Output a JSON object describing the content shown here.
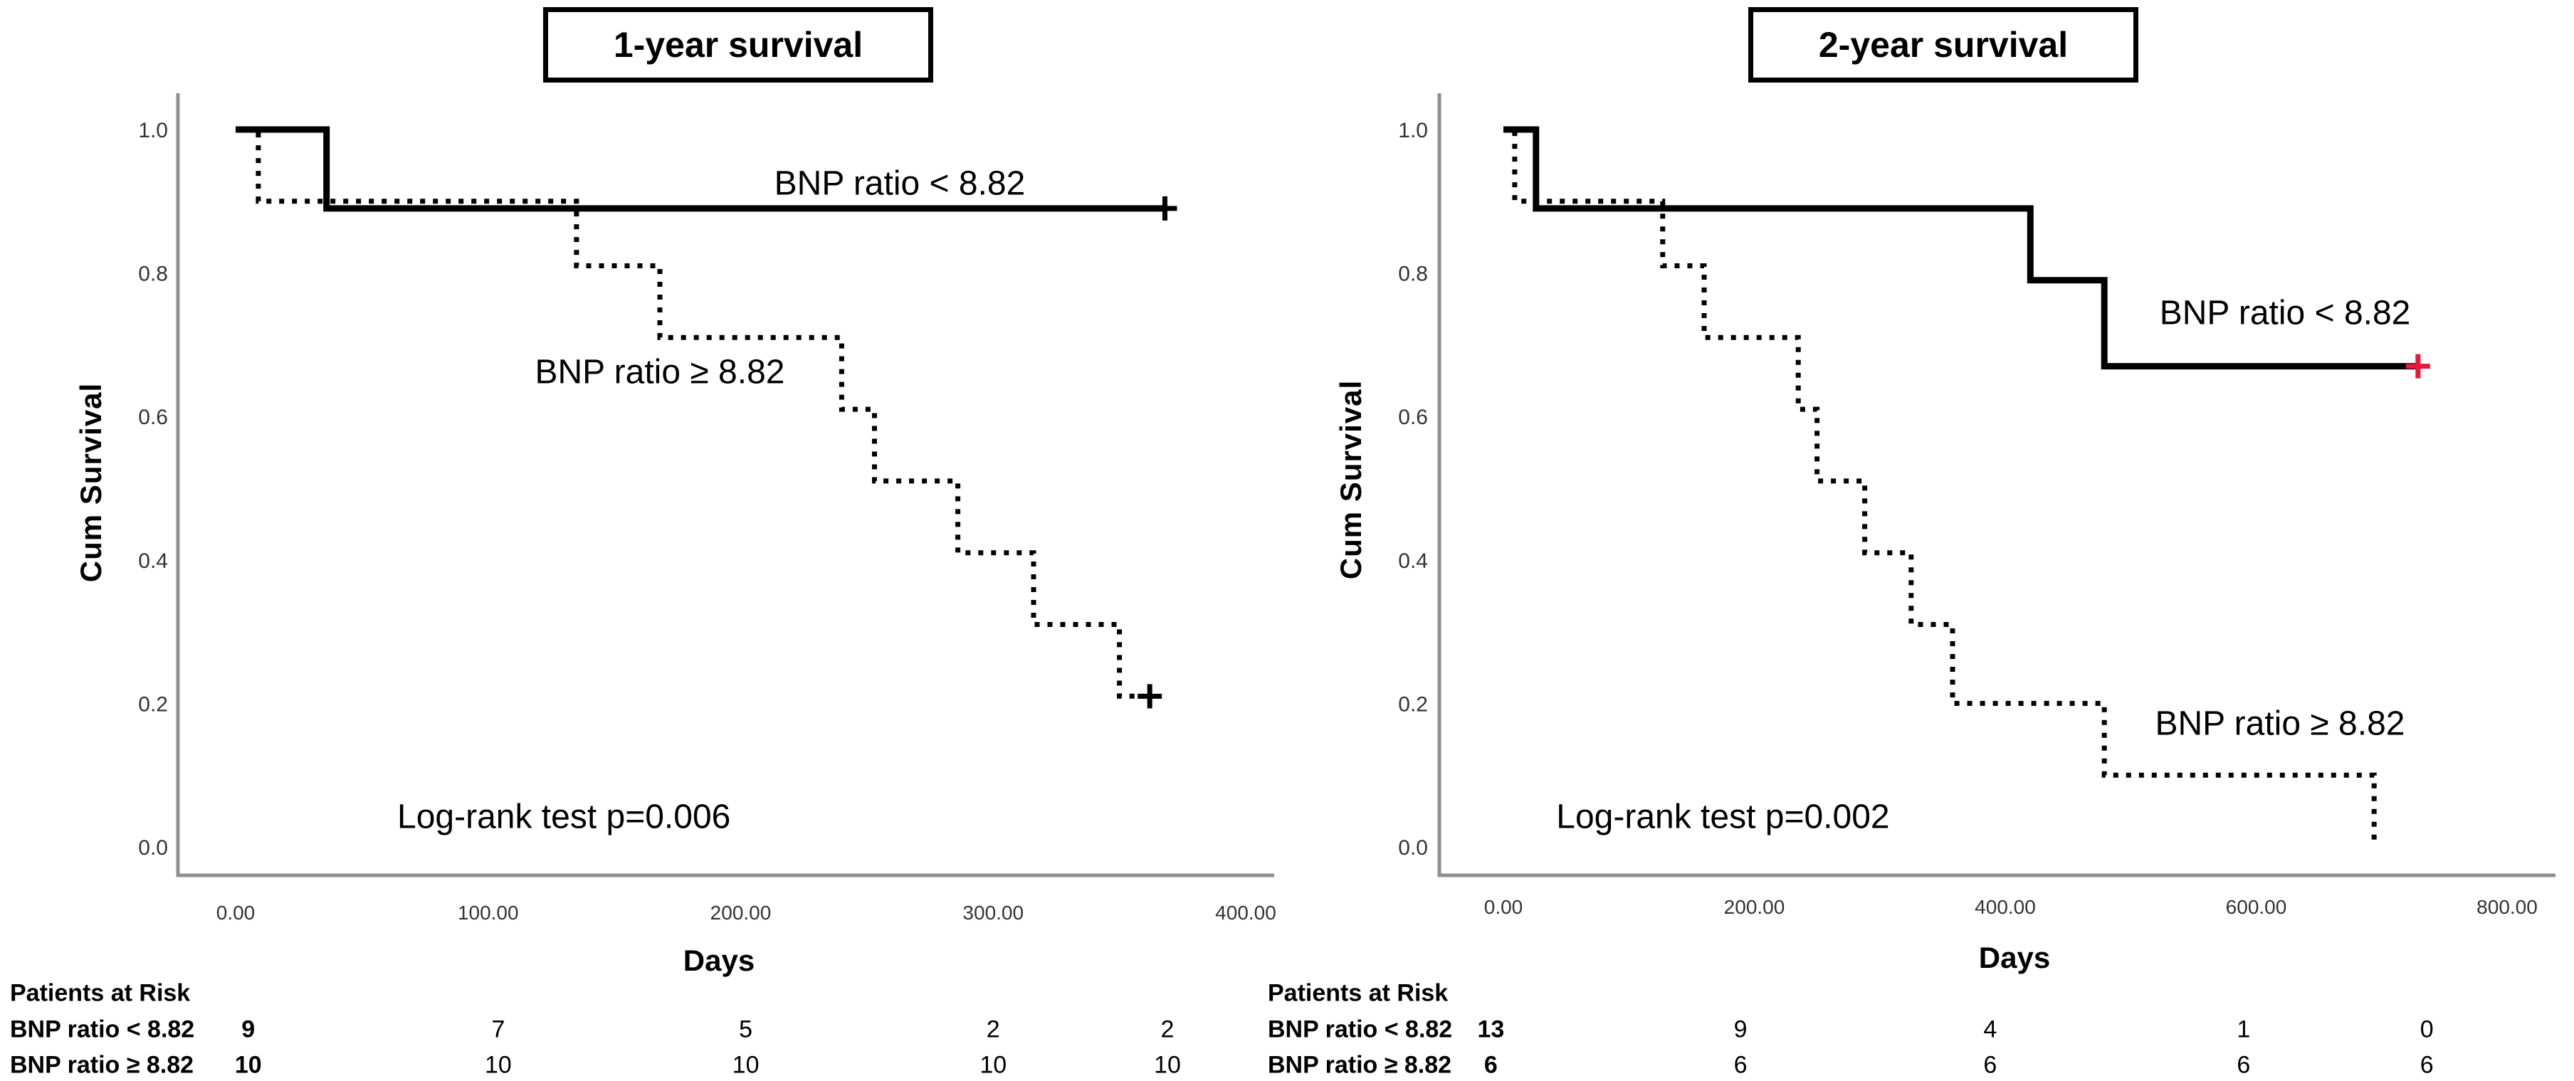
{
  "figure_background": "#ffffff",
  "censor_symbol": "+",
  "accent_red": "#e8173c",
  "chart_data": [
    {
      "type": "line",
      "subtype": "kaplan-meier-step",
      "title": "1-year survival",
      "xlabel": "Days",
      "ylabel": "Cum Survival",
      "xlim": [
        0,
        400
      ],
      "ylim": [
        0.0,
        1.0
      ],
      "grid": false,
      "legend_position": "inline-labels",
      "xticks": [
        {
          "label": "0.00",
          "day": 0
        },
        {
          "label": "100.00",
          "day": 100
        },
        {
          "label": "200.00",
          "day": 200
        },
        {
          "label": "300.00",
          "day": 300
        },
        {
          "label": "400.00",
          "day": 400
        }
      ],
      "yticks": [
        {
          "label": "1.0",
          "value": 1.0
        },
        {
          "label": "0.8",
          "value": 0.8
        },
        {
          "label": "0.6",
          "value": 0.6
        },
        {
          "label": "0.4",
          "value": 0.4
        },
        {
          "label": "0.2",
          "value": 0.2
        },
        {
          "label": "0.0",
          "value": 0.0
        }
      ],
      "logrank": {
        "text": "Log-rank test p=0.006",
        "anchor": {
          "day": 130,
          "value": 0.042
        }
      },
      "series": [
        {
          "name": "BNP ratio < 8.82",
          "style": "solid",
          "color": "#000000",
          "steps": [
            [
              0,
              1.0
            ],
            [
              36,
              1.0
            ],
            [
              36,
              0.89
            ],
            [
              368,
              0.89
            ]
          ],
          "censors": [
            {
              "day": 368,
              "value": 0.89,
              "color": "#000000"
            }
          ],
          "label": {
            "text": "BNP ratio < 8.82",
            "anchor": {
              "day": 263,
              "value": 0.925
            }
          }
        },
        {
          "name": "BNP ratio ≥ 8.82",
          "style": "dotted",
          "color": "#000000",
          "steps": [
            [
              0,
              1.0
            ],
            [
              9,
              1.0
            ],
            [
              9,
              0.9
            ],
            [
              135,
              0.9
            ],
            [
              135,
              0.81
            ],
            [
              168,
              0.81
            ],
            [
              168,
              0.71
            ],
            [
              240,
              0.71
            ],
            [
              240,
              0.61
            ],
            [
              253,
              0.61
            ],
            [
              253,
              0.51
            ],
            [
              286,
              0.51
            ],
            [
              286,
              0.41
            ],
            [
              316,
              0.41
            ],
            [
              316,
              0.31
            ],
            [
              350,
              0.31
            ],
            [
              350,
              0.21
            ],
            [
              360,
              0.21
            ]
          ],
          "censors": [
            {
              "day": 362,
              "value": 0.21,
              "color": "#000000"
            }
          ],
          "label": {
            "text": "BNP ratio ≥ 8.82",
            "anchor": {
              "day": 168,
              "value": 0.662
            }
          }
        }
      ],
      "at_risk": {
        "header": "Patients at Risk",
        "column_days": [
          5,
          104,
          202,
          300,
          369
        ],
        "rows": [
          {
            "label": "BNP ratio < 8.82",
            "counts": [
              "9",
              "7",
              "5",
              "2",
              "2"
            ]
          },
          {
            "label": "BNP ratio ≥ 8.82",
            "counts": [
              "10",
              "10",
              "10",
              "10",
              "10"
            ]
          }
        ]
      }
    },
    {
      "type": "line",
      "subtype": "kaplan-meier-step",
      "title": "2-year survival",
      "xlabel": "Days",
      "ylabel": "Cum Survival",
      "xlim": [
        0,
        800
      ],
      "ylim": [
        0.0,
        1.0
      ],
      "grid": false,
      "legend_position": "inline-labels",
      "xticks": [
        {
          "label": "0.00",
          "day": 0
        },
        {
          "label": "200.00",
          "day": 200
        },
        {
          "label": "400.00",
          "day": 400
        },
        {
          "label": "600.00",
          "day": 600
        },
        {
          "label": "800.00",
          "day": 800
        }
      ],
      "yticks": [
        {
          "label": "1.0",
          "value": 1.0
        },
        {
          "label": "0.8",
          "value": 0.8
        },
        {
          "label": "0.6",
          "value": 0.6
        },
        {
          "label": "0.4",
          "value": 0.4
        },
        {
          "label": "0.2",
          "value": 0.2
        },
        {
          "label": "0.0",
          "value": 0.0
        }
      ],
      "logrank": {
        "text": "Log-rank test p=0.002",
        "anchor": {
          "day": 175,
          "value": 0.042
        }
      },
      "series": [
        {
          "name": "BNP ratio < 8.82",
          "style": "solid",
          "color": "#000000",
          "steps": [
            [
              0,
              1.0
            ],
            [
              26,
              1.0
            ],
            [
              26,
              0.89
            ],
            [
              420,
              0.89
            ],
            [
              420,
              0.79
            ],
            [
              479,
              0.79
            ],
            [
              479,
              0.67
            ],
            [
              729,
              0.67
            ]
          ],
          "censors": [
            {
              "day": 729,
              "value": 0.67,
              "color": "#e8173c"
            }
          ],
          "label": {
            "text": "BNP ratio < 8.82",
            "anchor": {
              "day": 623,
              "value": 0.744
            }
          }
        },
        {
          "name": "BNP ratio ≥ 8.82",
          "style": "dotted",
          "color": "#000000",
          "steps": [
            [
              0,
              1.0
            ],
            [
              9,
              1.0
            ],
            [
              9,
              0.9
            ],
            [
              127,
              0.9
            ],
            [
              127,
              0.81
            ],
            [
              160,
              0.81
            ],
            [
              160,
              0.71
            ],
            [
              235,
              0.71
            ],
            [
              235,
              0.61
            ],
            [
              250,
              0.61
            ],
            [
              250,
              0.51
            ],
            [
              288,
              0.51
            ],
            [
              288,
              0.41
            ],
            [
              325,
              0.41
            ],
            [
              325,
              0.31
            ],
            [
              358,
              0.31
            ],
            [
              358,
              0.2
            ],
            [
              479,
              0.2
            ],
            [
              479,
              0.1
            ],
            [
              694,
              0.1
            ],
            [
              694,
              0.01
            ]
          ],
          "censors": [],
          "label": {
            "text": "BNP ratio ≥ 8.82",
            "anchor": {
              "day": 619,
              "value": 0.172
            }
          }
        }
      ],
      "at_risk": {
        "header": "Patients at Risk",
        "column_days": [
          -10,
          189,
          388,
          590,
          736
        ],
        "rows": [
          {
            "label": "BNP ratio < 8.82",
            "counts": [
              "13",
              "9",
              "4",
              "1",
              "0"
            ]
          },
          {
            "label": "BNP ratio ≥ 8.82",
            "counts": [
              "6",
              "6",
              "6",
              "6",
              "6"
            ]
          }
        ]
      }
    }
  ]
}
